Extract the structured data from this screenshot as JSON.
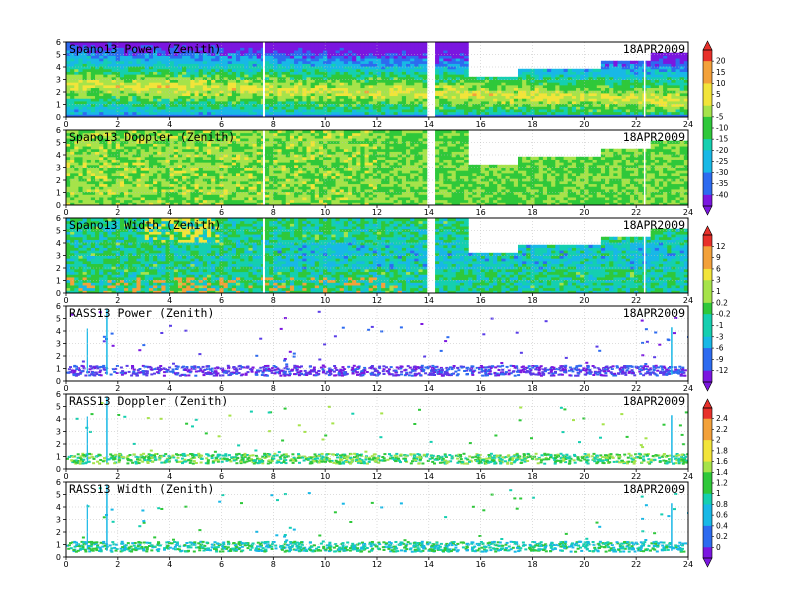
{
  "chart_data": [
    {
      "type": "heatmap",
      "title": "Spano13 Power (Zenith)",
      "date": "18APR2009",
      "series": "spano",
      "field": "power",
      "x_ticks": [
        "0",
        "2",
        "4",
        "6",
        "8",
        "10",
        "12",
        "14",
        "16",
        "18",
        "20",
        "22",
        "24"
      ],
      "y_ticks": [
        "0",
        "1",
        "2",
        "3",
        "4",
        "5",
        "6"
      ],
      "xlim": [
        0,
        24
      ],
      "ylim": [
        0,
        6
      ],
      "colorbar": {
        "ticks": [
          "20",
          "15",
          "10",
          "5",
          "0",
          "-5",
          "-10",
          "-15",
          "-20",
          "-25",
          "-30",
          "-35",
          "-40"
        ]
      }
    },
    {
      "type": "heatmap",
      "title": "Spano13 Doppler (Zenith)",
      "date": "18APR2009",
      "series": "spano",
      "field": "doppler",
      "x_ticks": [
        "0",
        "2",
        "4",
        "6",
        "8",
        "10",
        "12",
        "14",
        "16",
        "18",
        "20",
        "22",
        "24"
      ],
      "y_ticks": [
        "0",
        "1",
        "2",
        "3",
        "4",
        "5",
        "6"
      ],
      "xlim": [
        0,
        24
      ],
      "ylim": [
        0,
        6
      ]
    },
    {
      "type": "heatmap",
      "title": "Spano13 Width (Zenith)",
      "date": "18APR2009",
      "series": "spano",
      "field": "width",
      "x_ticks": [
        "0",
        "2",
        "4",
        "6",
        "8",
        "10",
        "12",
        "14",
        "16",
        "18",
        "20",
        "22",
        "24"
      ],
      "y_ticks": [
        "0",
        "1",
        "2",
        "3",
        "4",
        "5",
        "6"
      ],
      "xlim": [
        0,
        24
      ],
      "ylim": [
        0,
        6
      ],
      "colorbar": {
        "ticks": [
          "12",
          "9",
          "6",
          "3",
          "1",
          "0.2",
          "-0.2",
          "-1",
          "-3",
          "-6",
          "-9",
          "-12"
        ]
      }
    },
    {
      "type": "heatmap",
      "title": "RASS13 Power (Zenith)",
      "date": "18APR2009",
      "series": "rass",
      "field": "power",
      "x_ticks": [
        "0",
        "2",
        "4",
        "6",
        "8",
        "10",
        "12",
        "14",
        "16",
        "18",
        "20",
        "22",
        "24"
      ],
      "y_ticks": [
        "0",
        "1",
        "2",
        "3",
        "4",
        "5",
        "6"
      ],
      "xlim": [
        0,
        24
      ],
      "ylim": [
        0,
        6
      ]
    },
    {
      "type": "heatmap",
      "title": "RASS13 Doppler (Zenith)",
      "date": "18APR2009",
      "series": "rass",
      "field": "doppler",
      "x_ticks": [
        "0",
        "2",
        "4",
        "6",
        "8",
        "10",
        "12",
        "14",
        "16",
        "18",
        "20",
        "22",
        "24"
      ],
      "y_ticks": [
        "0",
        "1",
        "2",
        "3",
        "4",
        "5",
        "6"
      ],
      "xlim": [
        0,
        24
      ],
      "ylim": [
        0,
        6
      ],
      "colorbar": {
        "ticks": [
          "2.4",
          "2.2",
          "2",
          "1.8",
          "1.6",
          "1.4",
          "1.2",
          "1",
          "0.8",
          "0.6",
          "0.4",
          "0.2",
          "0"
        ]
      }
    },
    {
      "type": "heatmap",
      "title": "RASS13 Width (Zenith)",
      "date": "18APR2009",
      "series": "rass",
      "field": "width",
      "x_ticks": [
        "0",
        "2",
        "4",
        "6",
        "8",
        "10",
        "12",
        "14",
        "16",
        "18",
        "20",
        "22",
        "24"
      ],
      "y_ticks": [
        "0",
        "1",
        "2",
        "3",
        "4",
        "5",
        "6"
      ],
      "xlim": [
        0,
        24
      ],
      "ylim": [
        0,
        6
      ]
    }
  ],
  "colors": {
    "purple": "#7b16e0",
    "blue": "#2d6bf0",
    "cyan": "#18b8e6",
    "teal": "#15cfb0",
    "green": "#2fc83a",
    "lime": "#a6e34a",
    "yellow": "#f2e43a",
    "orange": "#f3a13a",
    "red": "#e8302a"
  }
}
